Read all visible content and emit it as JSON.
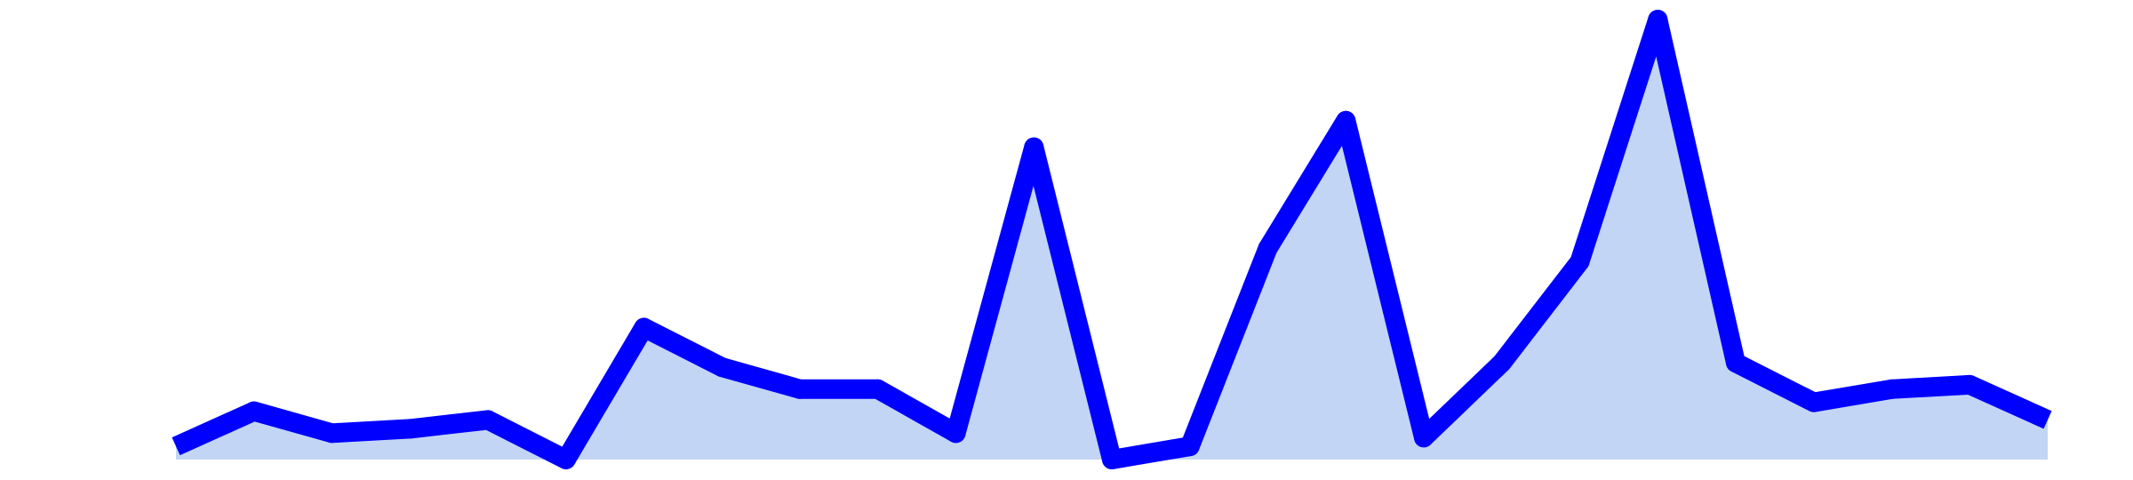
{
  "chart_data": {
    "type": "area",
    "title": "",
    "xlabel": "",
    "ylabel": "",
    "grid": false,
    "legend": "none",
    "colors": {
      "line": "#0000ff",
      "fill": "#c2d5f5",
      "background": "#ffffff"
    },
    "x": [
      0,
      1,
      2,
      3,
      4,
      5,
      6,
      7,
      8,
      9,
      10,
      11,
      12,
      13,
      14,
      15,
      16,
      17,
      18,
      19,
      20,
      21,
      22,
      23,
      24
    ],
    "xlim": [
      0,
      24
    ],
    "ylim": [
      0,
      100
    ],
    "series": [
      {
        "values": [
          3,
          11,
          6,
          7,
          9,
          0,
          30,
          21,
          16,
          16,
          6,
          71,
          0,
          3,
          48,
          77,
          5,
          22,
          45,
          100,
          22,
          13,
          16,
          17,
          9
        ]
      }
    ]
  }
}
